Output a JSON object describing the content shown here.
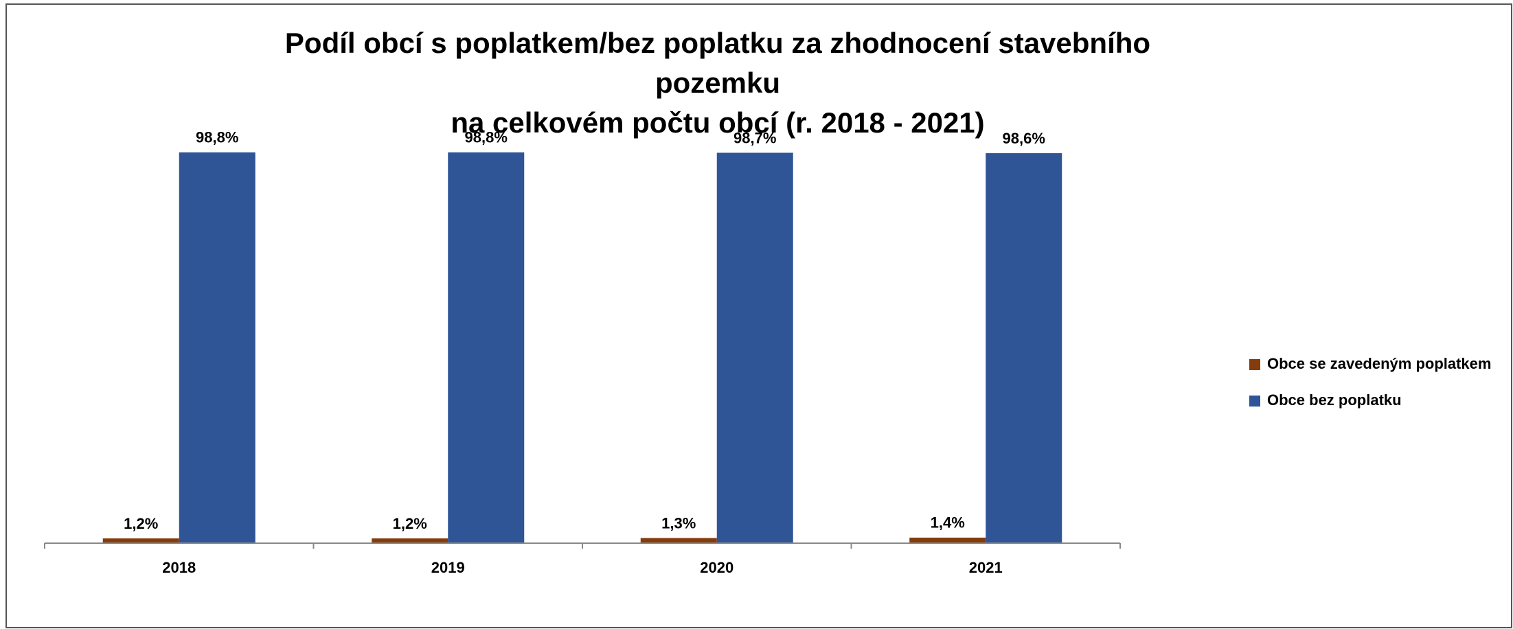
{
  "chart_data": {
    "type": "bar",
    "title": [
      "Podíl obcí s poplatkem/bez poplatku za zhodnocení stavebního",
      "pozemku",
      "na celkovém počtu obcí (r. 2018 - 2021)"
    ],
    "categories": [
      "2018",
      "2019",
      "2020",
      "2021"
    ],
    "series": [
      {
        "name": "Obce se zavedeným poplatkem",
        "color": "#843c0c",
        "values": [
          1.2,
          1.2,
          1.3,
          1.4
        ],
        "value_labels": [
          "1,2%",
          "1,2%",
          "1,3%",
          "1,4%"
        ]
      },
      {
        "name": "Obce bez poplatku",
        "color": "#2f5597",
        "values": [
          98.8,
          98.8,
          98.7,
          98.6
        ],
        "value_labels": [
          "98,8%",
          "98,8%",
          "98,7%",
          "98,6%"
        ]
      }
    ],
    "legend": "right"
  }
}
